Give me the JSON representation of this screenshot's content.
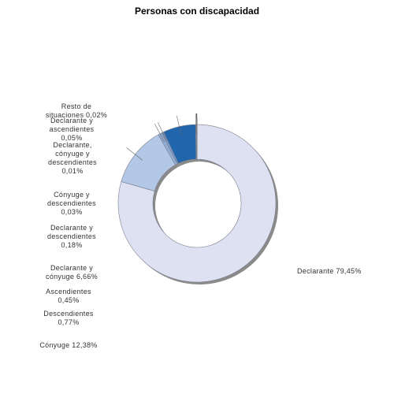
{
  "chart_data": {
    "type": "pie",
    "title": "Personas con discapacidad",
    "categories": [
      "Declarante",
      "Cónyuge",
      "Descendientes",
      "Ascendientes",
      "Declarante y cónyuge",
      "Declarante y descendientes",
      "Cónyuge y descendientes",
      "Declarante, cónyuge y descendientes",
      "Declarante y ascendientes",
      "Resto de situaciones"
    ],
    "values": [
      79.45,
      12.38,
      0.77,
      0.45,
      6.66,
      0.18,
      0.03,
      0.01,
      0.05,
      0.02
    ],
    "value_labels": [
      "79,45%",
      "12,38%",
      "0,77%",
      "0,45%",
      "6,66%",
      "0,18%",
      "0,03%",
      "0,01%",
      "0,05%",
      "0,02%"
    ],
    "colors": [
      "#dde1f1",
      "#b3c8e6",
      "#93aed6",
      "#7d9ccb",
      "#2166ac",
      "#6f94c4",
      "#4b73a8",
      "#3f6394",
      "#5a78a0",
      "#486a96"
    ],
    "donut": true,
    "legend": "none"
  }
}
